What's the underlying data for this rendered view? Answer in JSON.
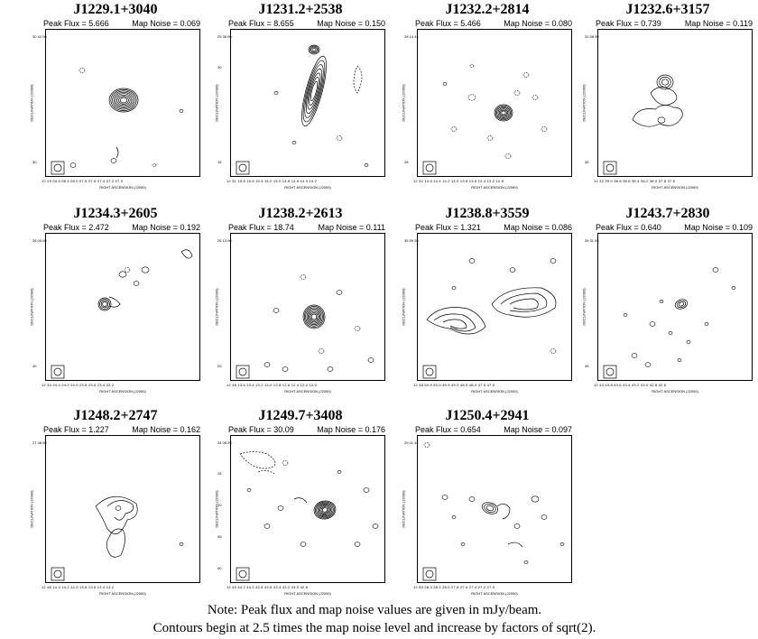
{
  "panels": [
    {
      "name": "J1229.1+3040",
      "peak_flux_label": "Peak Flux = 5.666",
      "map_noise_label": "Map Noise = 0.069",
      "ylabel": "DECLINATION (J2000)",
      "xlabel": "RIGHT ASCENSION (J2000)",
      "yticks": [
        "30 40 00",
        "",
        "",
        "",
        "30"
      ],
      "xticks": "12 29 04.5   08.4   08.0   07.9   07.6   07.4   07.2   07.0"
    },
    {
      "name": "J1231.2+2538",
      "peak_flux_label": "Peak Flux = 8.655",
      "map_noise_label": "Map Noise = 0.150",
      "ylabel": "DECLINATION (J2000)",
      "xlabel": "RIGHT ASCENSION (J2000)",
      "yticks": [
        "25 38 00",
        "30",
        "",
        "",
        "15"
      ],
      "xticks": "12 31 15.8   15.6   15.4   15.2   15.0   14.8   14.6   14.4   14.2"
    },
    {
      "name": "J1232.2+2814",
      "peak_flux_label": "Peak Flux = 5.466",
      "map_noise_label": "Map Noise = 0.080",
      "ylabel": "DECLINATION (J2000)",
      "xlabel": "RIGHT ASCENSION (J2000)",
      "yticks": [
        "28 14 44",
        "",
        "",
        "",
        "28"
      ],
      "xticks": "12 32 14.8   14.4   14.2   14.0   13.8   13.6   13.4   13.2   12.8"
    },
    {
      "name": "J1232.6+3157",
      "peak_flux_label": "Peak Flux = 0.739",
      "map_noise_label": "Map Noise = 0.119",
      "ylabel": "DECLINATION (J2000)",
      "xlabel": "RIGHT ASCENSION (J2000)",
      "yticks": [
        "31 58 00",
        "",
        "",
        "",
        "45"
      ],
      "xticks": "12 32 39.0   38.8   38.6   38.4   38.2   38.0   37.8   37.6"
    },
    {
      "name": "J1234.3+2605",
      "peak_flux_label": "Peak Flux = 2.472",
      "map_noise_label": "Map Noise = 0.192",
      "ylabel": "DECLINATION (J2000)",
      "xlabel": "RIGHT ASCENSION (J2000)",
      "yticks": [
        "26 05 00",
        "",
        "",
        "",
        "40"
      ],
      "xticks": "12 34 24.4   24.2   24.0   23.8   23.6   23.4   23.2"
    },
    {
      "name": "J1238.2+2613",
      "peak_flux_label": "Peak Flux = 18.74",
      "map_noise_label": "Map Noise = 0.111",
      "ylabel": "DECLINATION (J2000)",
      "xlabel": "RIGHT ASCENSION (J2000)",
      "yticks": [
        "26 13 00",
        "",
        "",
        "",
        "20"
      ],
      "xticks": "12 38 13.6   13.4   13.2   13.0   12.8   12.6   12.4   12.2   12.0"
    },
    {
      "name": "J1238.8+3559",
      "peak_flux_label": "Peak Flux = 1.321",
      "map_noise_label": "Map Noise = 0.086",
      "ylabel": "DECLINATION (J2000)",
      "xlabel": "RIGHT ASCENSION (J2000)",
      "yticks": [
        "35 59 20",
        "",
        "",
        "",
        ""
      ],
      "xticks": "12 38 50.5   50.0   49.5   49.0   48.5   48.0   47.5   47.0"
    },
    {
      "name": "J1243.7+2830",
      "peak_flux_label": "Peak Flux = 0.640",
      "map_noise_label": "Map Noise = 0.109",
      "ylabel": "DECLINATION (J2000)",
      "xlabel": "RIGHT ASCENSION (J2000)",
      "yticks": [
        "28 31 05",
        "",
        "",
        "",
        "45"
      ],
      "xticks": "12 43 43.8   43.6   43.4   43.2   43.0   42.8   42.6"
    },
    {
      "name": "J1248.2+2747",
      "peak_flux_label": "Peak Flux = 1.227",
      "map_noise_label": "Map Noise = 0.162",
      "ylabel": "DECLINATION (J2000)",
      "xlabel": "RIGHT ASCENSION (J2000)",
      "yticks": [
        "27 48 00",
        "",
        "",
        "",
        ""
      ],
      "xticks": "12 48 14.4   14.2   14.0   13.8   13.6   13.4   13.2"
    },
    {
      "name": "J1249.7+3408",
      "peak_flux_label": "Peak Flux = 30.09",
      "map_noise_label": "Map Noise = 0.176",
      "ylabel": "DECLINATION (J2000)",
      "xlabel": "RIGHT ASCENSION (J2000)",
      "yticks": [
        "34 08 20",
        "15",
        "10",
        "05",
        "00"
      ],
      "xticks": "12 49 44.2   44.0   43.8   43.6   43.4   43.2   43.0   42.8"
    },
    {
      "name": "J1250.4+2941",
      "peak_flux_label": "Peak Flux = 0.654",
      "map_noise_label": "Map Noise = 0.097",
      "ylabel": "DECLINATION (J2000)",
      "xlabel": "RIGHT ASCENSION (J2000)",
      "yticks": [
        "29 41 44",
        "",
        "",
        "",
        ""
      ],
      "xticks": "12 50 28.3   28.2   28.0   27.8   27.6   27.4   27.2   27.0"
    }
  ],
  "note_line1": "Note: Peak flux and map noise values are given in mJy/beam.",
  "note_line2": "Contours begin at 2.5 times the map noise level and increase by factors of sqrt(2)."
}
